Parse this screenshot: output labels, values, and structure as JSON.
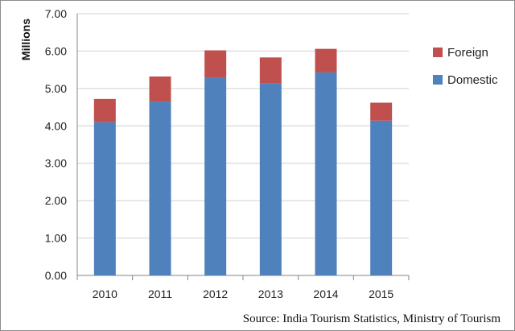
{
  "chart_data": {
    "type": "bar",
    "stacked": true,
    "categories": [
      "2010",
      "2011",
      "2012",
      "2013",
      "2014",
      "2015"
    ],
    "series": [
      {
        "name": "Domestic",
        "color": "#4f81bd",
        "values": [
          4.1,
          4.65,
          5.28,
          5.13,
          5.43,
          4.14
        ]
      },
      {
        "name": "Foreign",
        "color": "#c0504d",
        "values": [
          0.62,
          0.67,
          0.74,
          0.7,
          0.63,
          0.48
        ]
      }
    ],
    "ylabel": "Millions",
    "ylim": [
      0,
      7
    ],
    "yticks": [
      "0.00",
      "1.00",
      "2.00",
      "3.00",
      "4.00",
      "5.00",
      "6.00",
      "7.00"
    ],
    "grid": true,
    "legend": {
      "position": "right",
      "entries": [
        "Foreign",
        "Domestic"
      ]
    },
    "source": "Source: India Tourism Statistics, Ministry of Tourism"
  }
}
